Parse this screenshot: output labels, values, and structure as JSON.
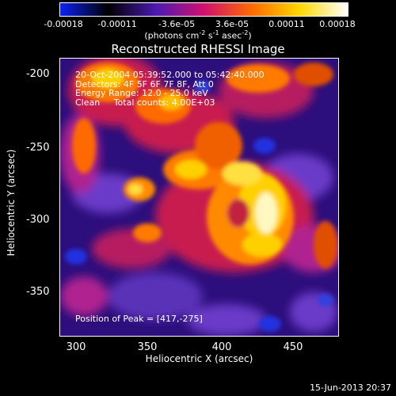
{
  "colorbar": {
    "ticks": [
      "-0.00018",
      "-0.00011",
      "-3.6e-05",
      "3.6e-05",
      "0.00011",
      "0.00018"
    ],
    "units_prefix": "(photons cm",
    "units_exp1": "-2",
    "units_mid": " s",
    "units_exp2": "-1",
    "units_mid2": " asec",
    "units_exp3": "-2",
    "units_suffix": ")",
    "colors": [
      "#0b22f5",
      "#000000",
      "#4a1ab0",
      "#d01070",
      "#ff6a00",
      "#ffd800",
      "#ffffff"
    ]
  },
  "title": "Reconstructed RHESSI Image",
  "info": {
    "line1": "20-Oct-2004 05:39:52.000 to 05:42:40.000",
    "line2": "Detectors: 4F 5F 6F 7F 8F, Att 0",
    "line3": "Energy Range: 12.0 - 25.0 keV",
    "line4": "Clean     Total counts: 4.00E+03"
  },
  "peak_text": "Position of Peak = [417,-275]",
  "axes": {
    "xlabel": "Heliocentric X (arcsec)",
    "ylabel": "Heliocentric Y (arcsec)",
    "x_ticks": [
      "300",
      "350",
      "400",
      "450"
    ],
    "y_ticks": [
      "-200",
      "-250",
      "-300",
      "-350"
    ]
  },
  "timestamp": "15-Jun-2013 20:37"
}
